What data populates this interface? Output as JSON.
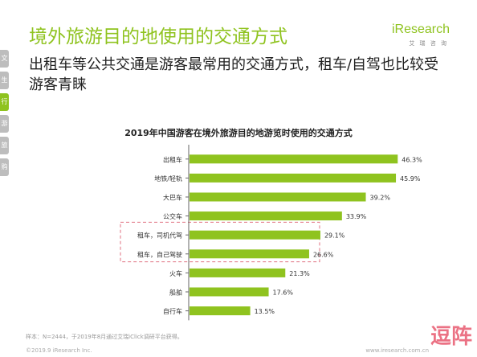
{
  "colors": {
    "accent": "#8fc31f",
    "highlight_box": "#e07080",
    "tab_gray": "#bdbdbd"
  },
  "side_tabs": [
    "文",
    "生",
    "行",
    "游",
    "旅",
    "购"
  ],
  "header": {
    "title": "境外旅游目的地使用的交通方式",
    "subtitle": "出租车等公共交通是游客最常用的交通方式，租车/自驾也比较受游客青睐"
  },
  "logo": {
    "wordmark": "iResearch",
    "sub": "艾 瑞 咨 询"
  },
  "chart_data": {
    "type": "bar",
    "orientation": "horizontal",
    "title": "2019年中国游客在境外旅游目的地游览时使用的交通方式",
    "categories": [
      "出租车",
      "地铁/轻轨",
      "大巴车",
      "公交车",
      "租车，司机代驾",
      "租车，自己驾驶",
      "火车",
      "船舶",
      "自行车"
    ],
    "values": [
      46.3,
      45.9,
      39.2,
      33.9,
      29.1,
      26.6,
      21.3,
      17.6,
      13.5
    ],
    "value_labels": [
      "46.3%",
      "45.9%",
      "39.2%",
      "33.9%",
      "29.1%",
      "26.6%",
      "21.3%",
      "17.6%",
      "13.5%"
    ],
    "xlim": [
      0,
      50
    ],
    "highlighted_categories": [
      "租车，司机代驾",
      "租车，自己驾驶"
    ],
    "grid": false
  },
  "footer": {
    "note": "样本：N=2444，于2019年8月通过艾瑞iClick调研平台获得。",
    "copyright": "©2019.9 iResearch Inc.",
    "site": "www.iresearch.com.cn"
  },
  "watermark": "逗阵"
}
